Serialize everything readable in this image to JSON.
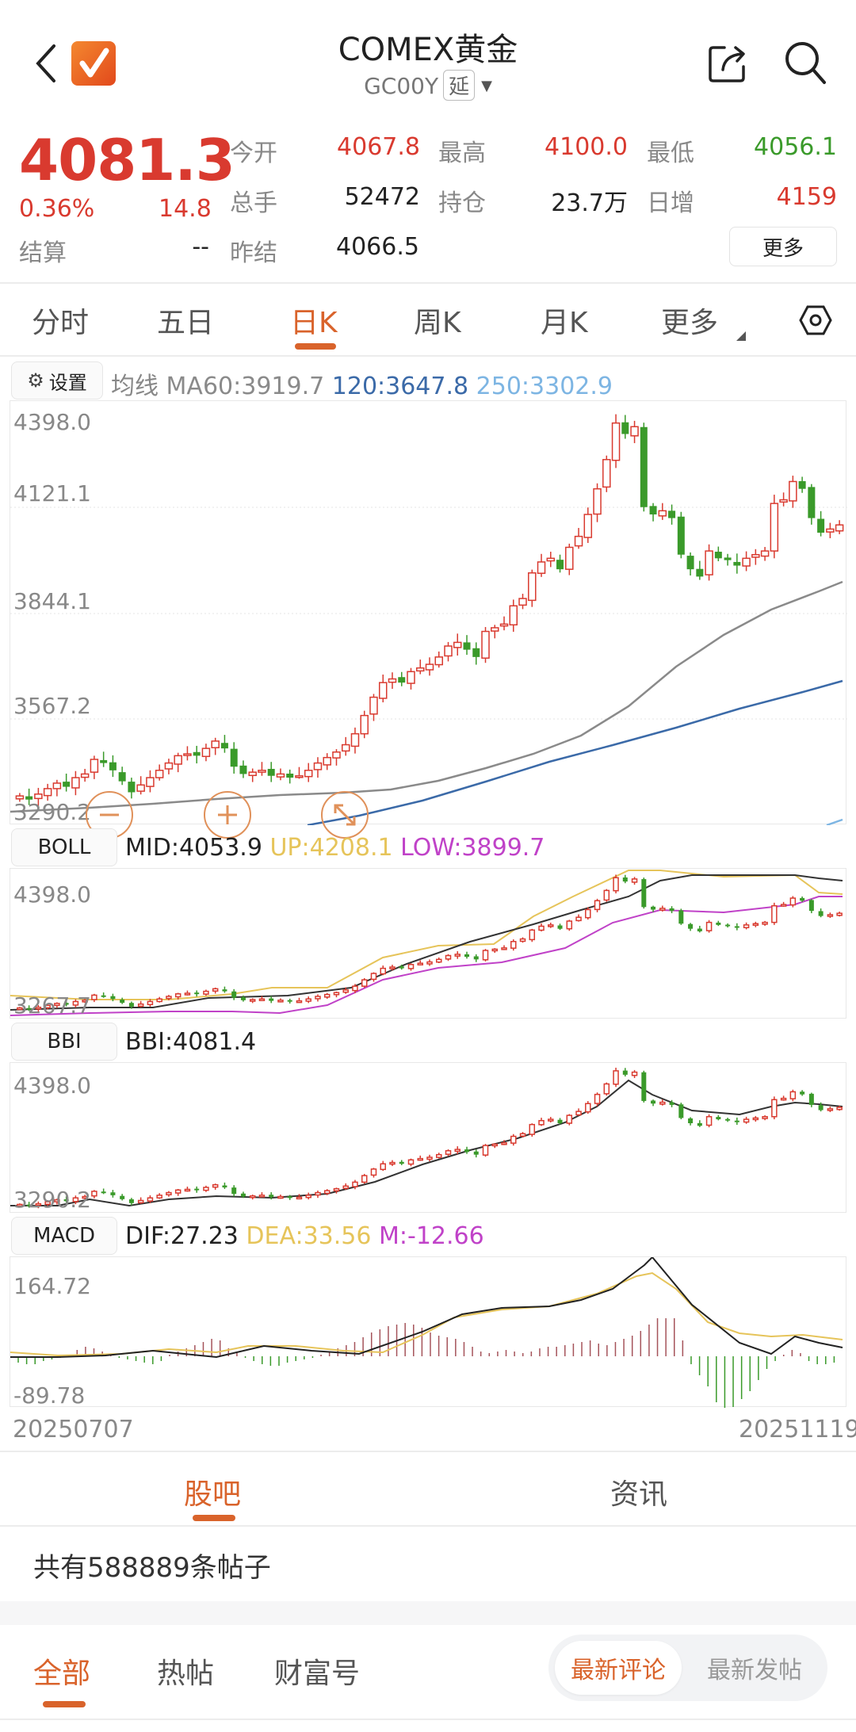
{
  "header": {
    "title": "COMEX黄金",
    "code": "GC00Y",
    "delay_tag": "延",
    "icons": {
      "back": "back-chevron-icon",
      "logo": "app-logo-check-icon",
      "share": "share-icon",
      "search": "search-icon"
    }
  },
  "quote": {
    "price": "4081.3",
    "change_pct": "0.36%",
    "change": "14.8",
    "settle_label": "结算",
    "settle_value": "--",
    "fields": [
      {
        "label": "今开",
        "value": "4067.8",
        "color": "#d93a2f"
      },
      {
        "label": "最高",
        "value": "4100.0",
        "color": "#d93a2f"
      },
      {
        "label": "最低",
        "value": "4056.1",
        "color": "#3a9a2a"
      },
      {
        "label": "总手",
        "value": "52472",
        "color": "#222222"
      },
      {
        "label": "持仓",
        "value": "23.7万",
        "color": "#222222"
      },
      {
        "label": "日增",
        "value": "4159",
        "color": "#d93a2f"
      },
      {
        "label": "昨结",
        "value": "4066.5",
        "color": "#222222"
      }
    ],
    "more_button": "更多"
  },
  "period_tabs": {
    "items": [
      "分时",
      "五日",
      "日K",
      "周K",
      "月K",
      "更多"
    ],
    "active_index": 2,
    "settings_icon": "hexagon-settings-icon"
  },
  "ma_legend": {
    "settings_label": "设置",
    "prefix": "均线",
    "ma60": "MA60:3919.7",
    "ma120": "120:3647.8",
    "ma250": "250:3302.9",
    "colors": {
      "ma60": "#8a8a8a",
      "ma120": "#3b6aa8",
      "ma250": "#7db5e3"
    }
  },
  "main_chart": {
    "y_ticks": [
      "4398.0",
      "4121.1",
      "3844.1",
      "3567.2",
      "3290.2"
    ],
    "zoom_controls": [
      "zoom-out",
      "zoom-in",
      "fullscreen"
    ]
  },
  "boll": {
    "button": "BOLL",
    "mid": "MID:4053.9",
    "up": "UP:4208.1",
    "low": "LOW:3899.7",
    "y_ticks": [
      "4398.0",
      "3267.7"
    ],
    "colors": {
      "mid": "#222222",
      "up": "#e6c45a",
      "low": "#c042c8"
    }
  },
  "bbi": {
    "button": "BBI",
    "value": "BBI:4081.4",
    "y_ticks": [
      "4398.0",
      "3290.2"
    ]
  },
  "macd": {
    "button": "MACD",
    "dif": "DIF:27.23",
    "dea": "DEA:33.56",
    "m": "M:-12.66",
    "y_ticks": [
      "164.72",
      "-89.78"
    ],
    "colors": {
      "dif": "#222222",
      "dea": "#e6c45a",
      "m": "#c042c8"
    }
  },
  "dates": {
    "start": "20250707",
    "end": "20251119"
  },
  "bottom_tabs": {
    "items": [
      "股吧",
      "资讯"
    ],
    "active_index": 0
  },
  "post_count": "共有588889条帖子",
  "filter_tabs": {
    "items": [
      "全部",
      "热帖",
      "财富号"
    ],
    "active_index": 0
  },
  "sort_options": {
    "items": [
      "最新评论",
      "最新发帖"
    ],
    "active_index": 0
  },
  "colors": {
    "accent": "#d9632b",
    "up": "#d93a2f",
    "down": "#3a9a2a"
  },
  "chart_data": {
    "type": "candlestick",
    "title": "COMEX黄金 日K",
    "x_range": [
      "20250707",
      "20251119"
    ],
    "ylim": [
      3290.2,
      4398.0
    ],
    "y_ticks": [
      4398.0,
      4121.1,
      3844.1,
      3567.2,
      3290.2
    ],
    "close_approx": [
      3340,
      3330,
      3345,
      3360,
      3375,
      3365,
      3390,
      3400,
      3440,
      3430,
      3410,
      3380,
      3350,
      3370,
      3390,
      3410,
      3430,
      3450,
      3455,
      3450,
      3470,
      3490,
      3470,
      3420,
      3400,
      3405,
      3410,
      3395,
      3400,
      3390,
      3395,
      3410,
      3430,
      3445,
      3460,
      3480,
      3510,
      3560,
      3610,
      3650,
      3660,
      3650,
      3680,
      3690,
      3700,
      3720,
      3750,
      3760,
      3740,
      3720,
      3790,
      3800,
      3810,
      3860,
      3880,
      3950,
      3980,
      3990,
      3960,
      4020,
      4050,
      4110,
      4180,
      4260,
      4360,
      4330,
      4350,
      4130,
      4110,
      4120,
      4100,
      4000,
      3960,
      3940,
      4010,
      3990,
      3985,
      3970,
      3990,
      4000,
      4010,
      4140,
      4150,
      4200,
      4180,
      4100,
      4060,
      4070,
      4081.3
    ],
    "series": [
      {
        "name": "MA60",
        "last": 3919.7
      },
      {
        "name": "MA120",
        "last": 3647.8
      },
      {
        "name": "MA250",
        "last": 3302.9
      }
    ],
    "indicators": {
      "BOLL": {
        "MID": 4053.9,
        "UP": 4208.1,
        "LOW": 3899.7
      },
      "BBI": {
        "BBI": 4081.4
      },
      "MACD": {
        "DIF": 27.23,
        "DEA": 33.56,
        "M": -12.66,
        "ylim": [
          -89.78,
          164.72
        ]
      }
    }
  }
}
